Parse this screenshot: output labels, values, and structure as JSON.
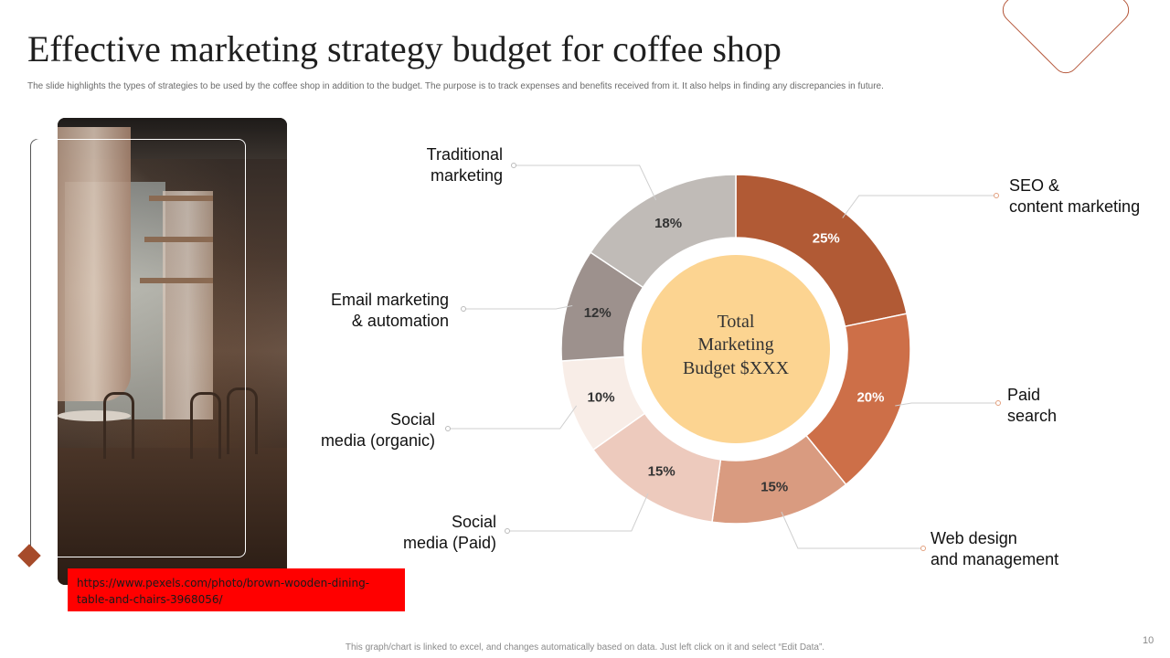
{
  "title": "Effective marketing strategy budget for coffee shop",
  "subtitle": "The slide highlights the types of strategies to be used by the coffee shop in addition to the budget. The purpose is to track expenses and benefits received from it. It also helps in finding any discrepancies in future.",
  "image_link": "https://www.pexels.com/photo/brown-wooden-dining-table-and-chairs-3968056/",
  "center_label": [
    "Total",
    "Marketing",
    "Budget $XXX"
  ],
  "footer": "This graph/chart is linked to excel, and changes automatically based on data. Just left click on it and select “Edit Data”.",
  "page_number": "10",
  "colors": {
    "accent": "#b5573a",
    "center_fill": "#fcd491",
    "link_box": "#ff0000"
  },
  "chart_data": {
    "type": "pie",
    "variant": "donut",
    "categories": [
      "SEO & content marketing",
      "Paid search",
      "Web design and management",
      "Social media (Paid)",
      "Social media (organic)",
      "Email marketing & automation",
      "Traditional marketing"
    ],
    "values": [
      25,
      20,
      15,
      15,
      10,
      12,
      18
    ],
    "value_labels": [
      "25%",
      "20%",
      "15%",
      "15%",
      "10%",
      "12%",
      "18%"
    ],
    "label_text": [
      "SEO &\ncontent marketing",
      "Paid\nsearch",
      "Web design\nand management",
      "Social\nmedia (Paid)",
      "Social\nmedia (organic)",
      "Email marketing\n& automation",
      "Traditional\nmarketing"
    ],
    "colors": [
      "#b15a35",
      "#cd6f48",
      "#d99b80",
      "#edcabd",
      "#f8ede7",
      "#9d918d",
      "#c0bbb7"
    ]
  }
}
